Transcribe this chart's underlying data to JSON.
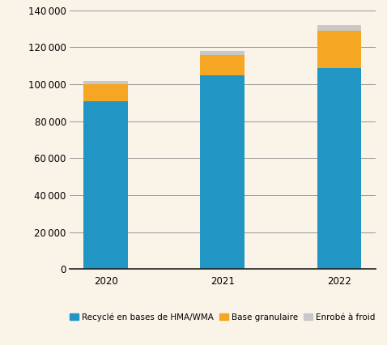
{
  "categories": [
    "2020",
    "2021",
    "2022"
  ],
  "series": {
    "Recyclé en bases de HMA/WMA": [
      91000,
      105000,
      109000
    ],
    "Base granulaire": [
      9000,
      11000,
      20000
    ],
    "Enrobé à froid": [
      2000,
      2000,
      3000
    ]
  },
  "colors": {
    "Recyclé en bases de HMA/WMA": "#2196c4",
    "Base granulaire": "#f5a623",
    "Enrobé à froid": "#c8c8c8"
  },
  "ylim": [
    0,
    140000
  ],
  "yticks": [
    0,
    20000,
    40000,
    60000,
    80000,
    100000,
    120000,
    140000
  ],
  "background_color": "#faf3e8",
  "bar_width": 0.38,
  "legend_fontsize": 7.5,
  "tick_fontsize": 8.5,
  "grid_color": "#888888",
  "figsize": [
    4.78,
    4.26
  ],
  "dpi": 100
}
